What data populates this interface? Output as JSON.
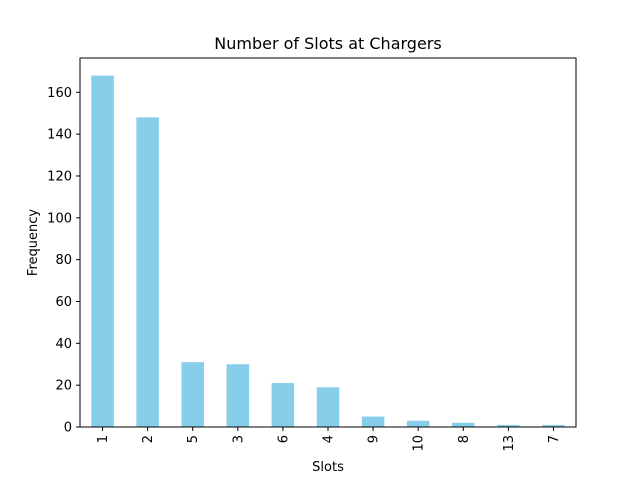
{
  "chart_data": {
    "type": "bar",
    "title": "Number of Slots at Chargers",
    "xlabel": "Slots",
    "ylabel": "Frequency",
    "categories": [
      "1",
      "2",
      "5",
      "3",
      "6",
      "4",
      "9",
      "10",
      "8",
      "13",
      "7"
    ],
    "values": [
      168,
      148,
      31,
      30,
      21,
      19,
      5,
      3,
      2,
      1,
      1
    ],
    "ylim": [
      0,
      176.4
    ],
    "yticks": [
      0,
      20,
      40,
      60,
      80,
      100,
      120,
      140,
      160
    ],
    "bar_color": "#87ceeb",
    "grid": false,
    "legend": "none"
  }
}
